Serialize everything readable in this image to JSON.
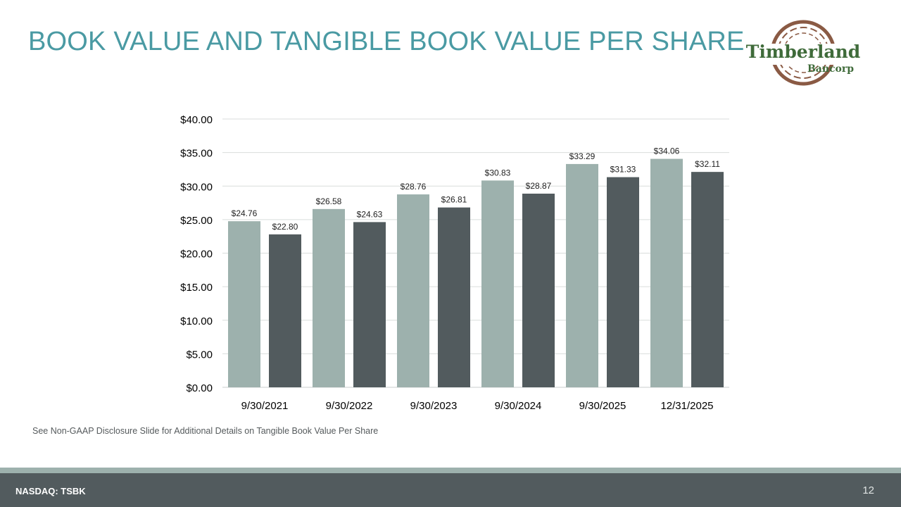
{
  "header": {
    "title": "BOOK VALUE AND TANGIBLE BOOK VALUE PER SHARE"
  },
  "logo": {
    "brand_name": "Timberland",
    "brand_sub": "Bancorp",
    "icon": "tree-rings-icon"
  },
  "chart_data": {
    "type": "bar",
    "categories": [
      "9/30/2021",
      "9/30/2022",
      "9/30/2023",
      "9/30/2024",
      "9/30/2025",
      "12/31/2025"
    ],
    "series": [
      {
        "values": [
          24.76,
          26.58,
          28.76,
          30.83,
          33.29,
          34.06
        ],
        "color": "#9db1ad",
        "labels": [
          "$24.76",
          "$26.58",
          "$28.76",
          "$30.83",
          "$33.29",
          "$34.06"
        ]
      },
      {
        "values": [
          22.8,
          24.63,
          26.81,
          28.87,
          31.33,
          32.11
        ],
        "color": "#525b5e",
        "labels": [
          "$22.80",
          "$24.63",
          "$26.81",
          "$28.87",
          "$31.33",
          "$32.11"
        ]
      }
    ],
    "ylim": [
      0,
      40
    ],
    "yticks": [
      0,
      5,
      10,
      15,
      20,
      25,
      30,
      35,
      40
    ],
    "ytick_labels": [
      "$0.00",
      "$5.00",
      "$10.00",
      "$15.00",
      "$20.00",
      "$25.00",
      "$30.00",
      "$35.00",
      "$40.00"
    ],
    "grid": true,
    "legend": "none"
  },
  "footnote": "See Non-GAAP Disclosure Slide for Additional Details on Tangible Book Value Per Share",
  "footer": {
    "ticker": "NASDAQ: TSBK",
    "page_number": "12"
  },
  "colors": {
    "title": "#4a9aa3",
    "footer_bar": "#525b5e",
    "footer_accent": "#9db1ad",
    "logo_text": "#3f6b3a",
    "logo_ring": "#8a5a44"
  }
}
